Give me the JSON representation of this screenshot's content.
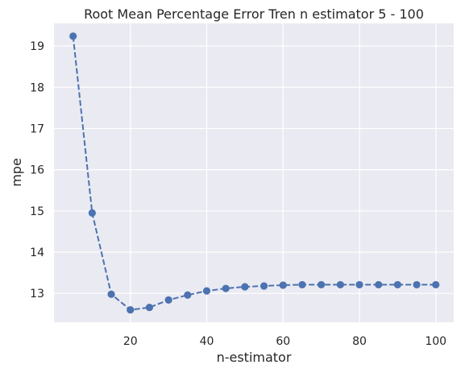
{
  "chart_data": {
    "type": "line",
    "title": "Root Mean Percentage Error Tren n estimator 5 - 100",
    "xlabel": "n-estimator",
    "ylabel": "mpe",
    "xlim": [
      0,
      104.7
    ],
    "ylim": [
      12.3,
      19.55
    ],
    "xticks": [
      20,
      40,
      60,
      80,
      100
    ],
    "yticks": [
      13,
      14,
      15,
      16,
      17,
      18,
      19
    ],
    "grid": true,
    "line_style": "dashed",
    "marker": "circle",
    "series": [
      {
        "color": "#4c72b0",
        "x": [
          5,
          10,
          15,
          20,
          25,
          30,
          35,
          40,
          45,
          50,
          55,
          60,
          65,
          70,
          75,
          80,
          85,
          90,
          95,
          100
        ],
        "y": [
          19.24,
          14.95,
          12.98,
          12.6,
          12.66,
          12.84,
          12.96,
          13.06,
          13.12,
          13.16,
          13.18,
          13.2,
          13.21,
          13.21,
          13.21,
          13.21,
          13.21,
          13.21,
          13.21,
          13.21
        ]
      }
    ]
  },
  "colors": {
    "plot_background": "#eaeaf2",
    "grid": "#ffffff",
    "text": "#262626"
  }
}
